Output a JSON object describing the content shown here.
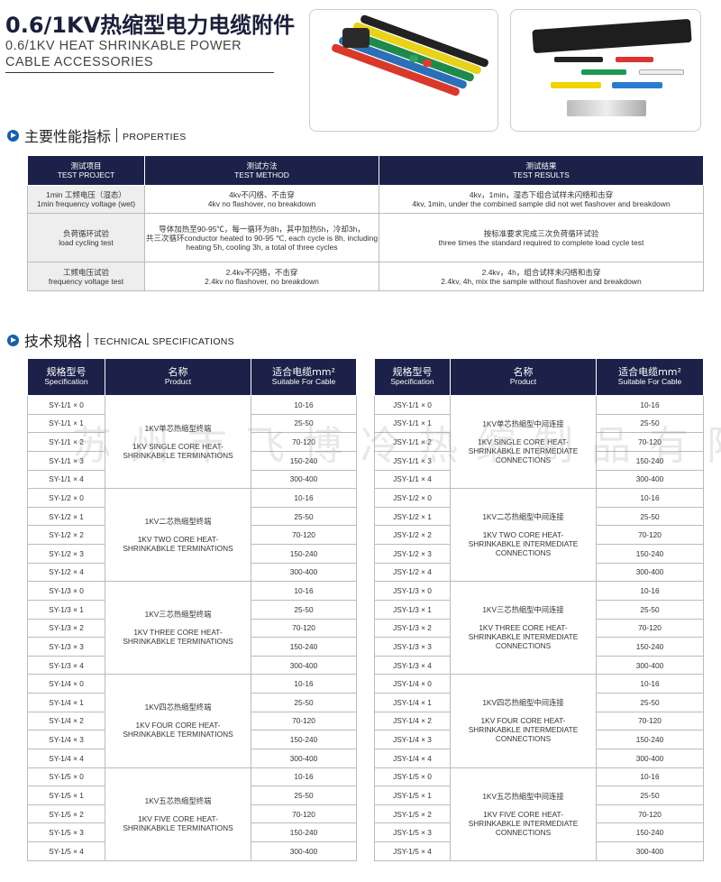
{
  "header": {
    "title_cn": "0.6/1KV热缩型电力电缆附件",
    "title_en": "0.6/1KV HEAT SHRINKABLE POWER CABLE ACCESSORIES"
  },
  "sections": {
    "properties": {
      "cn": "主要性能指标",
      "en": "PROPERTIES"
    },
    "specs": {
      "cn": "技术规格",
      "en": "TECHNICAL SPECIFICATIONS"
    }
  },
  "properties": {
    "headers": [
      {
        "cn": "测试项目",
        "en": "TEST PROJECT"
      },
      {
        "cn": "测试方法",
        "en": "TEST METHOD"
      },
      {
        "cn": "测试结果",
        "en": "TEST RESULTS"
      }
    ],
    "rows": [
      {
        "project_cn": "1min 工频电压（湿态）",
        "project_en": "1min frequency voltage (wet)",
        "method_cn": "4kv不闪络、不击穿",
        "method_en": "4kv no flashover, no breakdown",
        "result_cn": "4kv，1min，湿态下组合试样未闪络和击穿",
        "result_en": "4kv, 1min, under the combined sample did not wet flashover and breakdown"
      },
      {
        "project_cn": "负荷循环试验",
        "project_en": "load cycling test",
        "method_cn": "导体加热至90-95℃，每一循环为8h，其中加热5h，冷却3h，",
        "method_en": "共三次循环conductor heated to 90-95 ℃, each cycle is 8h, including heating 5h, cooling 3h, a total of three cycles",
        "result_cn": "按标准要求完成三次负荷循环试验",
        "result_en": "three times the standard required to complete load cycle test"
      },
      {
        "project_cn": "工频电压试验",
        "project_en": "frequency voltage test",
        "method_cn": "2.4kv不闪络，不击穿",
        "method_en": "2.4kv no flashover, no breakdown",
        "result_cn": "2.4kv，4h，组合试样未闪络和击穿",
        "result_en": "2.4kv, 4h, mix the sample without flashover and breakdown"
      }
    ]
  },
  "spec_headers": [
    {
      "cn": "规格型号",
      "en": "Specification"
    },
    {
      "cn": "名称",
      "en": "Product"
    },
    {
      "cn": "适合电缆mm²",
      "en": "Suitable For Cable"
    }
  ],
  "cable_sizes": [
    "10-16",
    "25-50",
    "70-120",
    "150-240",
    "300-400"
  ],
  "spec_tables": [
    {
      "prefix": "SY",
      "groups": [
        {
          "core": "1",
          "name_cn": "1KV单芯热缩型终端",
          "name_en": "1KV SINGLE CORE HEAT-SHRINKABKLE TERMINATIONS"
        },
        {
          "core": "2",
          "name_cn": "1KV二芯热缩型终端",
          "name_en": "1KV TWO CORE HEAT-SHRINKABKLE TERMINATIONS"
        },
        {
          "core": "3",
          "name_cn": "1KV三芯热缩型终端",
          "name_en": "1KV THREE CORE HEAT-SHRINKABKLE TERMINATIONS"
        },
        {
          "core": "4",
          "name_cn": "1KV四芯热缩型终端",
          "name_en": "1KV FOUR CORE HEAT-SHRINKABKLE TERMINATIONS"
        },
        {
          "core": "5",
          "name_cn": "1KV五芯热缩型终端",
          "name_en": "1KV FIVE CORE HEAT-SHRINKABKLE TERMINATIONS"
        }
      ]
    },
    {
      "prefix": "JSY",
      "groups": [
        {
          "core": "1",
          "name_cn": "1KV单芯热缩型中间连接",
          "name_en": "1KV SINGLE CORE HEAT-SHRINKABKLE INTERMEDIATE CONNECTIONS"
        },
        {
          "core": "2",
          "name_cn": "1KV二芯热缩型中间连接",
          "name_en": "1KV TWO CORE HEAT-SHRINKABKLE INTERMEDIATE CONNECTIONS"
        },
        {
          "core": "3",
          "name_cn": "1KV三芯热缩型中间连接",
          "name_en": "1KV THREE CORE HEAT-SHRINKABKLE INTERMEDIATE CONNECTIONS"
        },
        {
          "core": "4",
          "name_cn": "1KV四芯热缩型中间连接",
          "name_en": "1KV FOUR CORE HEAT-SHRINKABKLE INTERMEDIATE CONNECTIONS"
        },
        {
          "core": "5",
          "name_cn": "1KV五芯热缩型中间连接",
          "name_en": "1KV FIVE CORE HEAT-SHRINKABKLE INTERMEDIATE CONNECTIONS"
        }
      ]
    }
  ],
  "watermark": "苏州市飞博冷热缩制品有限公司",
  "colors": {
    "header_bg": "#1b2148",
    "accent": "#1a5fa8"
  }
}
